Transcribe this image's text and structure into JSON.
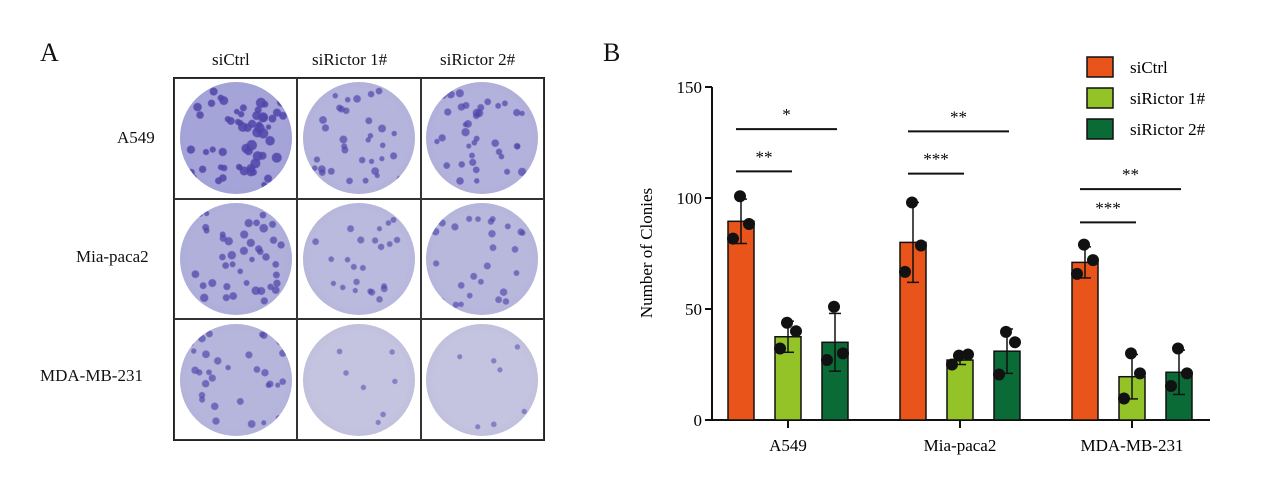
{
  "panel_a": {
    "label": "A",
    "columns": [
      "siCtrl",
      "siRictor 1#",
      "siRictor 2#"
    ],
    "rows": [
      "A549",
      "Mia-paca2",
      "MDA-MB-231"
    ]
  },
  "chart_data": {
    "type": "bar",
    "panel_label": "B",
    "categories": [
      "A549",
      "Mia-paca2",
      "MDA-MB-231"
    ],
    "ylabel": "Number of Clonies",
    "ylim": [
      0,
      150
    ],
    "yticks": [
      0,
      50,
      100,
      150
    ],
    "legend_position": "top-right",
    "series": [
      {
        "name": "siCtrl",
        "color": "#e8541a",
        "values": [
          89.5,
          80,
          71
        ],
        "sd": [
          10,
          18,
          7
        ],
        "points": [
          [
            100.8,
            88.3,
            81.7
          ],
          [
            98,
            78.6,
            66.7
          ],
          [
            79,
            72,
            65.8
          ]
        ]
      },
      {
        "name": "siRictor 1#",
        "color": "#93c327",
        "values": [
          37.5,
          27,
          19.5
        ],
        "sd": [
          7,
          2,
          10
        ],
        "points": [
          [
            43.8,
            40,
            32.2
          ],
          [
            29,
            29.5,
            25
          ],
          [
            30,
            21,
            9.7
          ]
        ]
      },
      {
        "name": "siRictor 2#",
        "color": "#0a6b36",
        "values": [
          35,
          31,
          21.5
        ],
        "sd": [
          13,
          10,
          10
        ],
        "points": [
          [
            51,
            30,
            27
          ],
          [
            39.7,
            35,
            20.5
          ],
          [
            32.2,
            21,
            15.3
          ]
        ]
      }
    ],
    "annotations": [
      {
        "group": "A549",
        "compare": "siCtrl vs siRictor 1#",
        "text": "**"
      },
      {
        "group": "A549",
        "compare": "siCtrl vs siRictor 2#",
        "text": "*"
      },
      {
        "group": "Mia-paca2",
        "compare": "siCtrl vs siRictor 1#",
        "text": "***"
      },
      {
        "group": "Mia-paca2",
        "compare": "siCtrl vs siRictor 2#",
        "text": "**"
      },
      {
        "group": "MDA-MB-231",
        "compare": "siCtrl vs siRictor 1#",
        "text": "***"
      },
      {
        "group": "MDA-MB-231",
        "compare": "siCtrl vs siRictor 2#",
        "text": "**"
      }
    ]
  }
}
